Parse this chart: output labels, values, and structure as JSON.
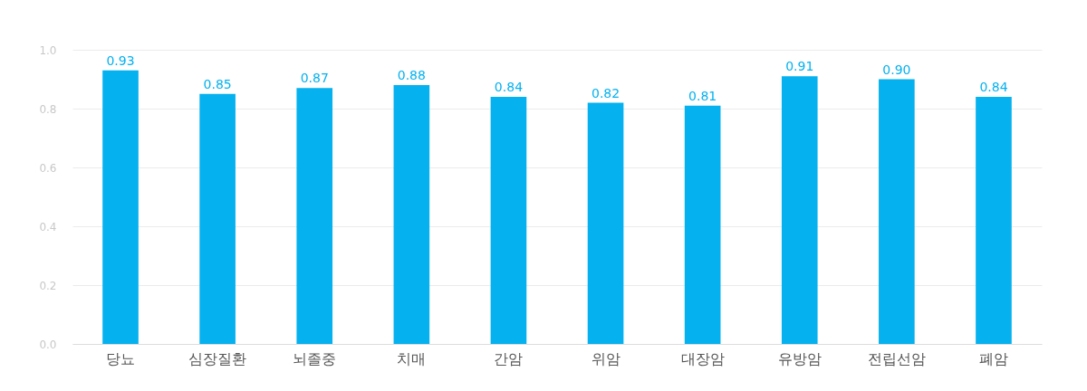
{
  "chart_data": {
    "type": "bar",
    "categories": [
      "당뇨",
      "심장질환",
      "뇌졸중",
      "치매",
      "간암",
      "위암",
      "대장암",
      "유방암",
      "전립선암",
      "폐암"
    ],
    "values": [
      0.93,
      0.85,
      0.87,
      0.88,
      0.84,
      0.82,
      0.81,
      0.91,
      0.9,
      0.84
    ],
    "value_labels": [
      "0.93",
      "0.85",
      "0.87",
      "0.88",
      "0.84",
      "0.82",
      "0.81",
      "0.91",
      "0.90",
      "0.84"
    ],
    "color": "#05b1ef",
    "ylim": [
      0,
      1
    ],
    "yticks": [
      {
        "value": 0,
        "label": "0.0"
      },
      {
        "value": 0.2,
        "label": "0.2"
      },
      {
        "value": 0.4,
        "label": "0.4"
      },
      {
        "value": 0.6,
        "label": "0.6"
      },
      {
        "value": 0.8,
        "label": "0.8"
      },
      {
        "value": 1,
        "label": "1.0"
      }
    ],
    "grid": "y"
  }
}
